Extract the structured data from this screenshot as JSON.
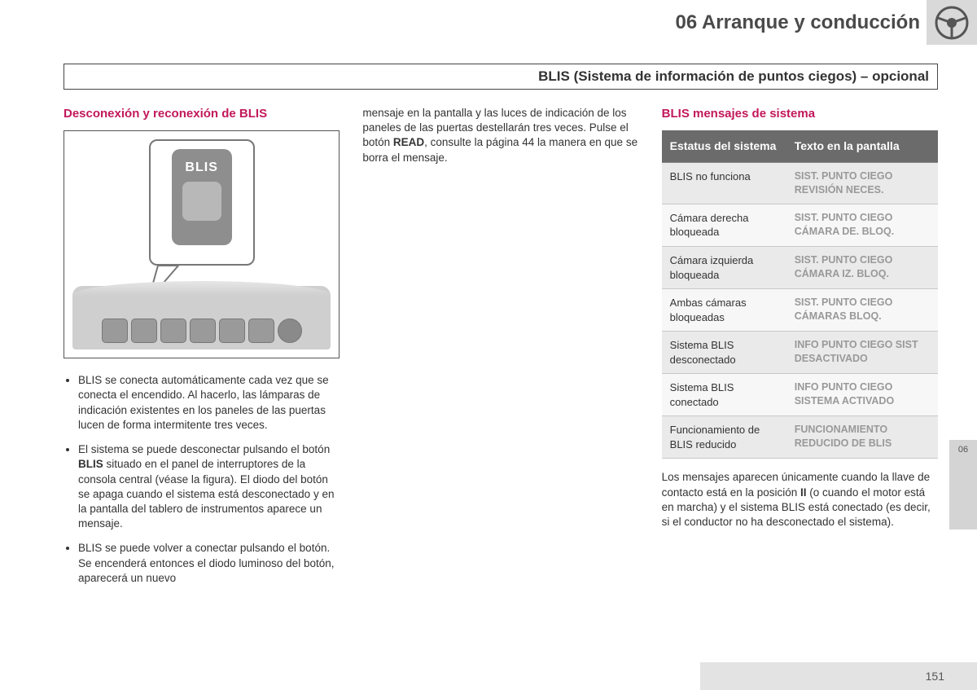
{
  "header": {
    "chapter": "06 Arranque y conducción",
    "subtitle": "BLIS (Sistema de información de puntos ciegos) – opcional"
  },
  "colors": {
    "accent": "#c2185b",
    "header_bg": "#d9d9d9",
    "table_header_bg": "#6b6b6b",
    "table_header_text": "#ffffff",
    "table_msg_text": "#999999",
    "row_shade": "#eaeaea",
    "row_noshade": "#f7f7f7",
    "footer_bg": "#e3e3e3"
  },
  "left": {
    "title": "Desconexión y reconexión de BLIS",
    "figure": {
      "button_label": "BLIS",
      "console_buttons": 7
    },
    "bullets": [
      "BLIS se conecta automáticamente cada vez que se conecta el encendido. Al hacerlo, las lámparas de indicación existentes en los paneles de las puertas lucen de forma intermitente tres veces.",
      "El sistema se puede desconectar pulsando el botón <b>BLIS</b> situado en el panel de interruptores de la consola central (véase la figura). El diodo del botón se apaga cuando el sistema está desconectado y en la pantalla del tablero de instrumentos aparece un mensaje.",
      "BLIS se puede volver a conectar pulsando el botón. Se encenderá entonces el diodo luminoso del botón, aparecerá un nuevo"
    ]
  },
  "middle": {
    "paragraph": "mensaje en la pantalla y las luces de indicación de los paneles de las puertas destellarán tres veces. Pulse el botón <b>READ</b>, consulte la página 44 la manera en que se borra el mensaje."
  },
  "right": {
    "title": "BLIS mensajes de sistema",
    "table": {
      "headers": [
        "Estatus del sistema",
        "Texto en la pantalla"
      ],
      "rows": [
        {
          "status": "BLIS no funciona",
          "msg": "SIST. PUNTO CIEGO REVISIÓN NECES.",
          "shade": true
        },
        {
          "status": "Cámara derecha bloqueada",
          "msg": "SIST. PUNTO CIEGO CÁMARA DE. BLOQ.",
          "shade": false
        },
        {
          "status": "Cámara izquierda bloqueada",
          "msg": "SIST. PUNTO CIEGO CÁMARA IZ. BLOQ.",
          "shade": true
        },
        {
          "status": "Ambas cámaras bloqueadas",
          "msg": "SIST. PUNTO CIEGO CÁMARAS BLOQ.",
          "shade": false
        },
        {
          "status": "Sistema BLIS desconectado",
          "msg": "INFO PUNTO CIEGO SIST DESACTIVADO",
          "shade": true
        },
        {
          "status": "Sistema BLIS conectado",
          "msg": "INFO PUNTO CIEGO SISTEMA ACTIVADO",
          "shade": false
        },
        {
          "status": "Funcionamiento de BLIS reducido",
          "msg": "FUNCIONAMIENTO REDUCIDO DE BLIS",
          "shade": true
        }
      ]
    },
    "footnote": "Los mensajes aparecen únicamente cuando la llave de contacto está en la posición <b>II</b> (o cuando el motor está en marcha) y el sistema BLIS está conectado (es decir, si el conductor no ha desconectado el sistema)."
  },
  "side_tab": "06",
  "page_number": "151"
}
